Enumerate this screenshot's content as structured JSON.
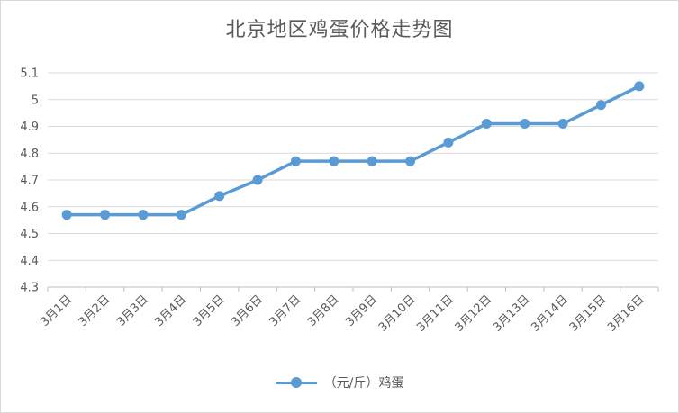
{
  "chart_data": {
    "type": "line",
    "title": "北京地区鸡蛋价格走势图",
    "categories": [
      "3月1日",
      "3月2日",
      "3月3日",
      "3月4日",
      "3月5日",
      "3月6日",
      "3月7日",
      "3月8日",
      "3月9日",
      "3月10日",
      "3月11日",
      "3月12日",
      "3月13日",
      "3月14日",
      "3月15日",
      "3月16日"
    ],
    "series": [
      {
        "name": "（元/斤）鸡蛋",
        "values": [
          4.57,
          4.57,
          4.57,
          4.57,
          4.64,
          4.7,
          4.77,
          4.77,
          4.77,
          4.77,
          4.84,
          4.91,
          4.91,
          4.91,
          4.98,
          5.05
        ],
        "color": "#5b9bd5"
      }
    ],
    "yticks": [
      "4.3",
      "4.4",
      "4.5",
      "4.6",
      "4.7",
      "4.8",
      "4.9",
      "5",
      "5.1"
    ],
    "ylim": [
      4.3,
      5.1
    ],
    "grid": true,
    "legend_position": "bottom"
  }
}
